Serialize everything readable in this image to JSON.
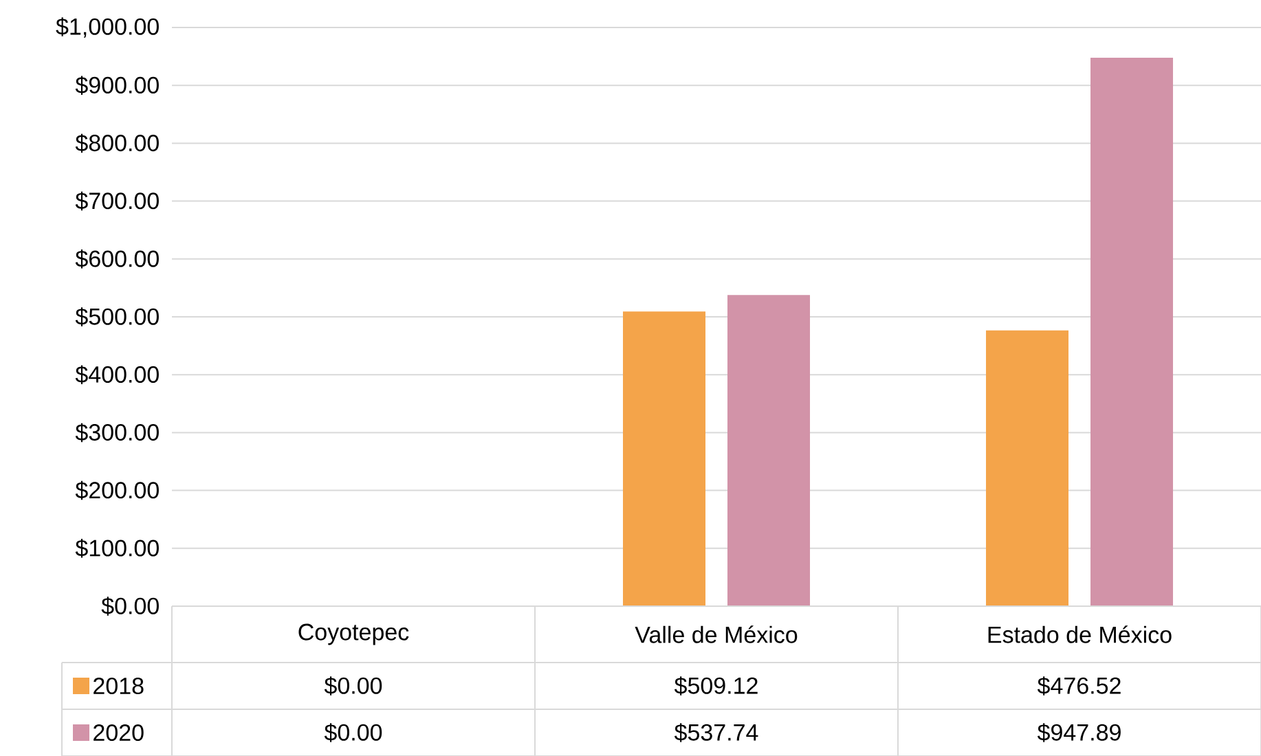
{
  "chart_data": {
    "type": "bar",
    "categories": [
      "Coyotepec",
      "Valle de México",
      "Estado de México"
    ],
    "series": [
      {
        "name": "2018",
        "color": "#f4a44a",
        "values": [
          0,
          509.12,
          476.52
        ],
        "value_labels": [
          "$0.00",
          "$509.12",
          "$476.52"
        ]
      },
      {
        "name": "2020",
        "color": "#d293a8",
        "values": [
          0,
          537.74,
          947.89
        ],
        "value_labels": [
          "$0.00",
          "$537.74",
          "$947.89"
        ]
      }
    ],
    "ylim": [
      0,
      1000
    ],
    "yticks": [
      {
        "value": 0,
        "label": "$0.00"
      },
      {
        "value": 100,
        "label": "$100.00"
      },
      {
        "value": 200,
        "label": "$200.00"
      },
      {
        "value": 300,
        "label": "$300.00"
      },
      {
        "value": 400,
        "label": "$400.00"
      },
      {
        "value": 500,
        "label": "$500.00"
      },
      {
        "value": 600,
        "label": "$600.00"
      },
      {
        "value": 700,
        "label": "$700.00"
      },
      {
        "value": 800,
        "label": "$800.00"
      },
      {
        "value": 900,
        "label": "$900.00"
      },
      {
        "value": 1000,
        "label": "$1,000.00"
      }
    ],
    "grid": "y",
    "legend": "bottom"
  }
}
